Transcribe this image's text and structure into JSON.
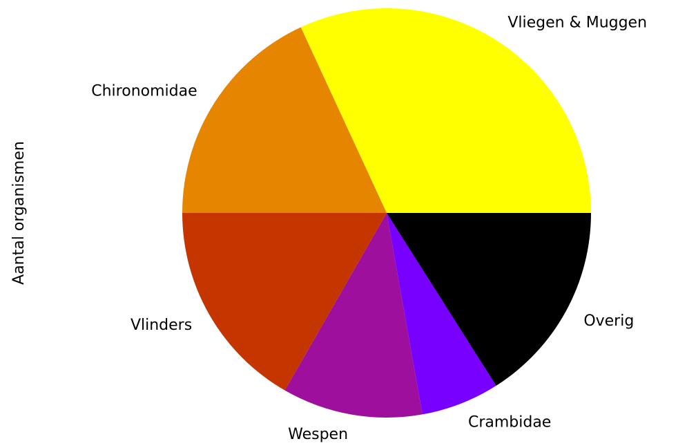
{
  "chart_data": {
    "type": "pie",
    "ylabel": "Aantal organismen",
    "categories": [
      "Vliegen & Muggen",
      "Chironomidae",
      "Vlinders",
      "Wespen",
      "Crambidae",
      "Overig"
    ],
    "values": [
      31.9,
      18.1,
      16.7,
      11.1,
      6.2,
      16.0
    ],
    "colors": [
      "#ffff00",
      "#e68600",
      "#c43500",
      "#9e0f9e",
      "#7700ff",
      "#000000"
    ],
    "start_angle": 0,
    "counterclock": true
  }
}
